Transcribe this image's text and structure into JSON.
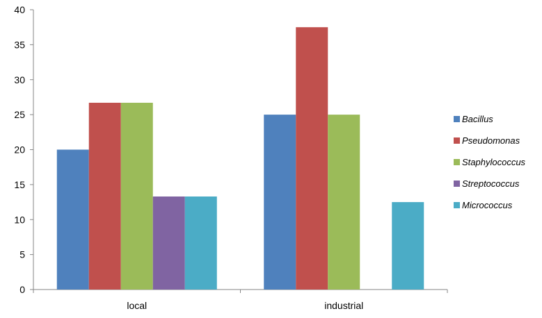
{
  "chart_data": {
    "type": "bar",
    "categories": [
      "local",
      "industrial"
    ],
    "series": [
      {
        "name": "Bacillus",
        "values": [
          20,
          25
        ],
        "color": "#4F81BD"
      },
      {
        "name": "Pseudomonas",
        "values": [
          26.7,
          37.5
        ],
        "color": "#C0504D"
      },
      {
        "name": "Staphylococcus",
        "values": [
          26.7,
          25
        ],
        "color": "#9BBB59"
      },
      {
        "name": "Streptococcus",
        "values": [
          13.3,
          0
        ],
        "color": "#8064A2"
      },
      {
        "name": "Micrococcus",
        "values": [
          13.3,
          12.5
        ],
        "color": "#4BACC6"
      }
    ],
    "title": "",
    "xlabel": "",
    "ylabel": "",
    "ylim": [
      0,
      40
    ],
    "yticks": [
      0,
      5,
      10,
      15,
      20,
      25,
      30,
      35,
      40
    ],
    "grid": false,
    "legend_position": "right"
  }
}
